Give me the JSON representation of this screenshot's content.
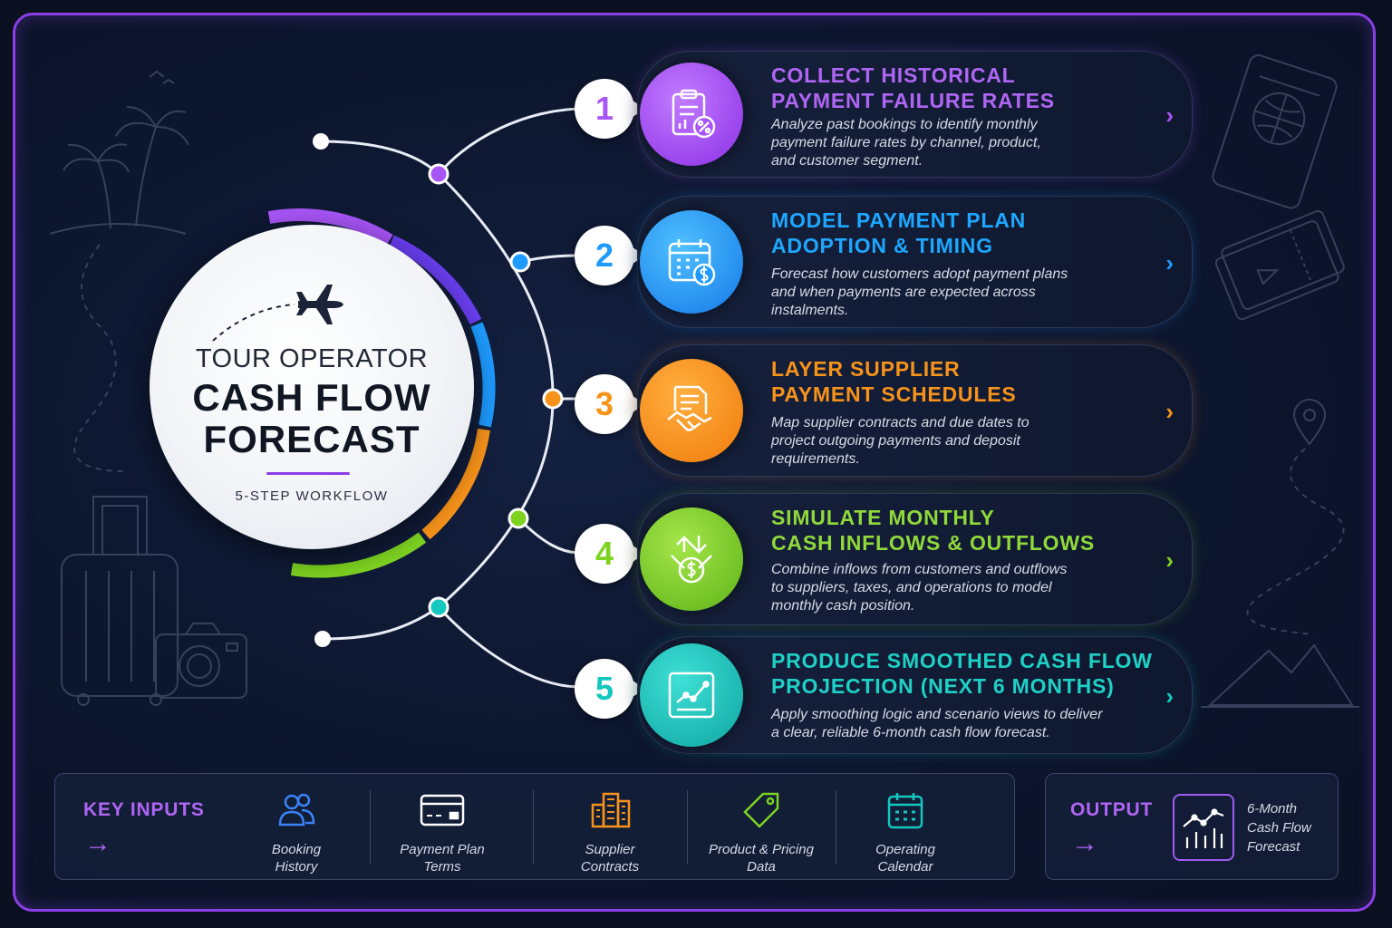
{
  "hub": {
    "line1": "TOUR OPERATOR",
    "line2": "CASH FLOW",
    "line3": "FORECAST",
    "subtitle": "5-STEP WORKFLOW"
  },
  "steps": [
    {
      "number": "1",
      "title_a": "COLLECT HISTORICAL",
      "title_b": "PAYMENT FAILURE RATES",
      "desc_a": "Analyze past bookings to identify monthly",
      "desc_b": "payment failure rates by channel, product,",
      "desc_c": "and customer segment.",
      "color": "#a855f7",
      "icon": "clipboard-percent-icon"
    },
    {
      "number": "2",
      "title_a": "MODEL PAYMENT PLAN",
      "title_b": "ADOPTION & TIMING",
      "desc_a": "Forecast how customers adopt payment plans",
      "desc_b": "and when payments are expected across",
      "desc_c": "instalments.",
      "color": "#1e9bff",
      "icon": "calendar-dollar-icon"
    },
    {
      "number": "3",
      "title_a": "LAYER SUPPLIER",
      "title_b": "PAYMENT SCHEDULES",
      "desc_a": "Map supplier contracts and due dates to",
      "desc_b": "project outgoing payments and deposit",
      "desc_c": "requirements.",
      "color": "#f7931a",
      "icon": "contract-handshake-icon"
    },
    {
      "number": "4",
      "title_a": "SIMULATE MONTHLY",
      "title_b": "CASH INFLOWS & OUTFLOWS",
      "desc_a": "Combine inflows from customers and outflows",
      "desc_b": "to suppliers, taxes, and operations to model",
      "desc_c": "monthly cash position.",
      "color": "#7ed321",
      "icon": "cash-flow-arrows-icon"
    },
    {
      "number": "5",
      "title_a": "PRODUCE SMOOTHED CASH FLOW",
      "title_b": "PROJECTION (NEXT 6 MONTHS)",
      "desc_a": "Apply smoothing logic and scenario views to deliver",
      "desc_b": "a clear, reliable 6-month cash flow forecast.",
      "desc_c": "",
      "color": "#14c8c0",
      "icon": "line-chart-icon"
    }
  ],
  "inputs": {
    "heading": "KEY INPUTS",
    "items": [
      {
        "label_a": "Booking",
        "label_b": "History",
        "icon": "users-icon",
        "color": "#3b82f6"
      },
      {
        "label_a": "Payment Plan",
        "label_b": "Terms",
        "icon": "credit-card-icon",
        "color": "#ffffff"
      },
      {
        "label_a": "Supplier",
        "label_b": "Contracts",
        "icon": "buildings-icon",
        "color": "#f7931a"
      },
      {
        "label_a": "Product & Pricing",
        "label_b": "Data",
        "icon": "price-tag-icon",
        "color": "#7ed321"
      },
      {
        "label_a": "Operating",
        "label_b": "Calendar",
        "icon": "calendar-icon",
        "color": "#14c8c0"
      }
    ]
  },
  "output": {
    "heading": "OUTPUT",
    "label_a": "6-Month",
    "label_b": "Cash Flow",
    "label_c": "Forecast",
    "icon": "chart-icon"
  },
  "colors": {
    "frame": "#8b3fe6",
    "background": "#0d1730",
    "accent": "#b066f4"
  }
}
